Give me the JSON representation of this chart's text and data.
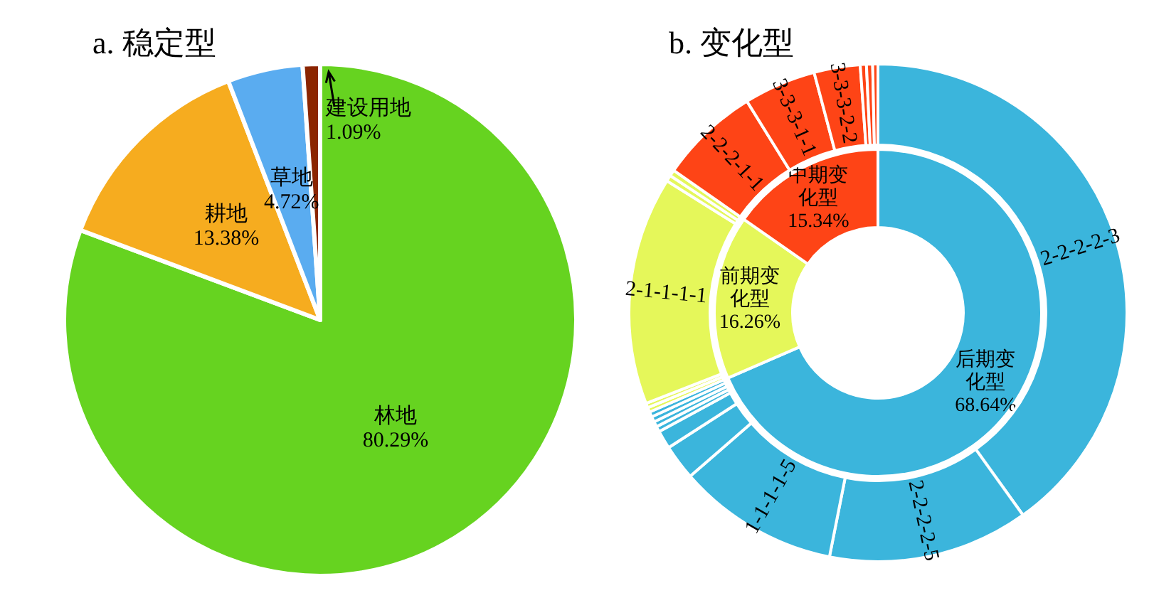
{
  "chart_data": [
    {
      "type": "pie",
      "title": "a. 稳定型",
      "categories": [
        "林地",
        "耕地",
        "草地",
        "建设用地"
      ],
      "values": [
        80.29,
        13.38,
        4.72,
        1.09
      ],
      "value_labels": [
        "80.29%",
        "13.38%",
        "4.72%",
        "1.09%"
      ],
      "colors": [
        "#66d320",
        "#f6ac1f",
        "#5aacf0",
        "#8b2500"
      ]
    },
    {
      "type": "donut",
      "title": "b. 变化型",
      "categories": [
        "后期变化型",
        "前期变化型",
        "中期变化型"
      ],
      "values": [
        68.64,
        16.26,
        15.34
      ],
      "value_labels": [
        "68.64%",
        "16.26%",
        "15.34%"
      ],
      "colors": [
        "#3bb5dc",
        "#e5f75a",
        "#fe4416"
      ]
    },
    {
      "type": "donut",
      "categories": [
        "2-2-2-2-3",
        "2-2-2-2-5",
        "1-1-1-1-5",
        null,
        null,
        null,
        null,
        null,
        null,
        null,
        null,
        "2-1-1-1-1",
        null,
        null,
        "2-2-2-1-1",
        "3-3-3-1-1",
        "3-3-3-2-2",
        null,
        null,
        null
      ],
      "values": [
        40.2,
        13.05,
        10.5,
        2.3,
        1.2,
        0.35,
        0.35,
        0.35,
        0.34,
        0.3,
        0.3,
        14.86,
        0.4,
        0.4,
        6.5,
        4.7,
        3.0,
        0.4,
        0.4,
        0.34
      ],
      "colors": [
        "#3bb5dc",
        "#3bb5dc",
        "#3bb5dc",
        "#3bb5dc",
        "#3bb5dc",
        "#3bb5dc",
        "#3bb5dc",
        "#3bb5dc",
        "#3bb5dc",
        "#e5f75a",
        "#e5f75a",
        "#e5f75a",
        "#e5f75a",
        "#e5f75a",
        "#fe4416",
        "#fe4416",
        "#fe4416",
        "#fe4416",
        "#fe4416",
        "#fe4416"
      ]
    }
  ]
}
